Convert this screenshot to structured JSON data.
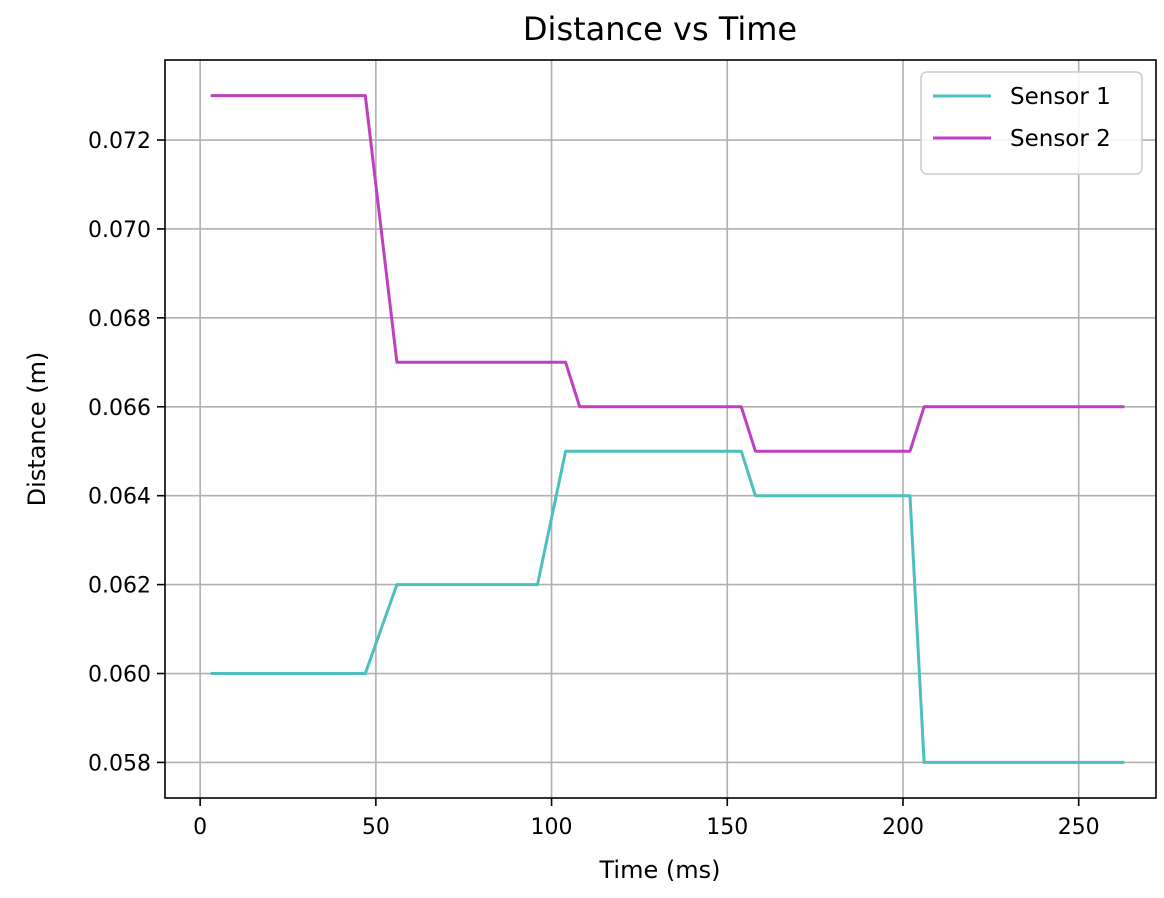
{
  "chart_data": {
    "type": "line",
    "title": "Distance vs Time",
    "xlabel": "Time (ms)",
    "ylabel": "Distance (m)",
    "xlim": [
      -10,
      272
    ],
    "ylim": [
      0.0572,
      0.0738
    ],
    "xticks": [
      0,
      50,
      100,
      150,
      200,
      250
    ],
    "xtick_labels": [
      "0",
      "50",
      "100",
      "150",
      "200",
      "250"
    ],
    "yticks": [
      0.058,
      0.06,
      0.062,
      0.064,
      0.066,
      0.068,
      0.07,
      0.072
    ],
    "ytick_labels": [
      "0.058",
      "0.060",
      "0.062",
      "0.064",
      "0.066",
      "0.068",
      "0.070",
      "0.072"
    ],
    "grid": true,
    "legend_position": "top-right",
    "series": [
      {
        "name": "Sensor 1",
        "color": "#4dbfbf",
        "x": [
          3,
          47,
          56,
          96,
          104,
          154,
          158,
          202,
          206,
          263
        ],
        "y": [
          0.06,
          0.06,
          0.062,
          0.062,
          0.065,
          0.065,
          0.064,
          0.064,
          0.058,
          0.058
        ]
      },
      {
        "name": "Sensor 2",
        "color": "#bf40bf",
        "x": [
          3,
          47,
          56,
          104,
          108,
          154,
          158,
          202,
          206,
          263
        ],
        "y": [
          0.073,
          0.073,
          0.067,
          0.067,
          0.066,
          0.066,
          0.065,
          0.065,
          0.066,
          0.066
        ]
      }
    ]
  }
}
